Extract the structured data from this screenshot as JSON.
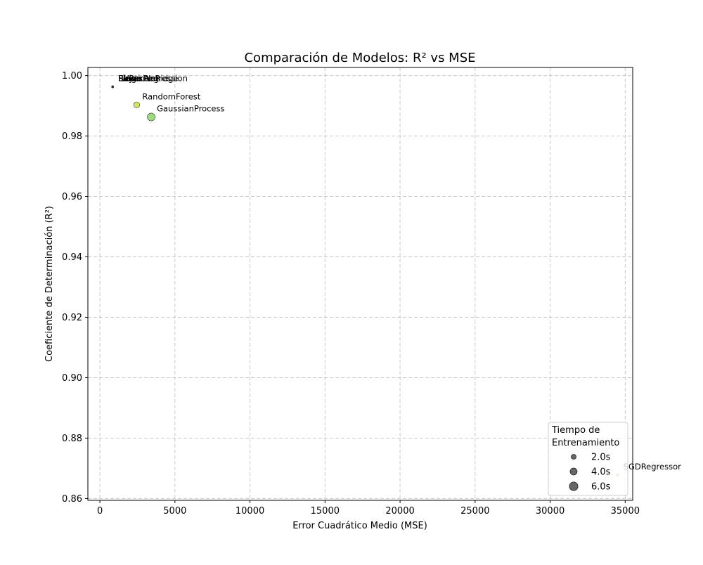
{
  "chart_data": {
    "type": "scatter",
    "title": "Comparación de Modelos: R² vs MSE",
    "xlabel": "Error Cuadrático Medio (MSE)",
    "ylabel": "Coeficiente de Determinación (R²)",
    "xlim": [
      -800,
      35500
    ],
    "ylim": [
      0.8594,
      1.0027
    ],
    "xticks": [
      0,
      5000,
      10000,
      15000,
      20000,
      25000,
      30000,
      35000
    ],
    "yticks": [
      0.86,
      0.88,
      0.9,
      0.92,
      0.94,
      0.96,
      0.98,
      1.0
    ],
    "grid": true,
    "points": [
      {
        "label": "Lasso",
        "x": 850,
        "y": 0.9963,
        "time_s": 0.1,
        "color": "#3b528b"
      },
      {
        "label": "LinearRegression",
        "x": 850,
        "y": 0.9963,
        "time_s": 0.1,
        "color": "#31688e"
      },
      {
        "label": "Ridge",
        "x": 850,
        "y": 0.9963,
        "time_s": 0.1,
        "color": "#26828e"
      },
      {
        "label": "BayesianRidge",
        "x": 850,
        "y": 0.9963,
        "time_s": 0.1,
        "color": "#1f9e89"
      },
      {
        "label": "ElasticNet",
        "x": 850,
        "y": 0.9963,
        "time_s": 0.1,
        "color": "#35b779"
      },
      {
        "label": "SVR",
        "x": 850,
        "y": 0.9963,
        "time_s": 0.1,
        "color": "#440154"
      },
      {
        "label": "RandomForest",
        "x": 2450,
        "y": 0.9903,
        "time_s": 3.0,
        "color": "#bddf26"
      },
      {
        "label": "GaussianProcess",
        "x": 3420,
        "y": 0.9863,
        "time_s": 5.0,
        "color": "#7ad151"
      },
      {
        "label": "SGDRegressor",
        "x": 34500,
        "y": 0.8678,
        "time_s": 0.05,
        "color": "#fde725"
      }
    ],
    "legend": {
      "title_line1": "Tiempo de",
      "title_line2": "Entrenamiento",
      "entries": [
        "2.0s",
        "4.0s",
        "6.0s"
      ],
      "entry_sizes_s": [
        2.0,
        4.0,
        6.0
      ],
      "placement": "lower-right"
    }
  }
}
